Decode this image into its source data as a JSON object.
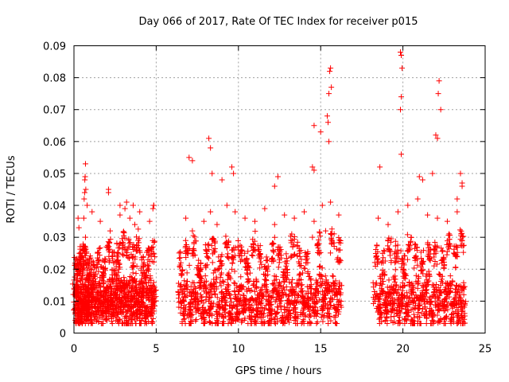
{
  "chart_data": {
    "type": "scatter",
    "title": "Day 066 of 2017, Rate Of TEC Index for receiver p015",
    "xlabel": "GPS time / hours",
    "ylabel": "ROTI / TECUs",
    "xlim": [
      0,
      25
    ],
    "ylim": [
      0,
      0.09
    ],
    "x_ticks": [
      0,
      5,
      10,
      15,
      20,
      25
    ],
    "y_ticks": [
      0,
      0.01,
      0.02,
      0.03,
      0.04,
      0.05,
      0.06,
      0.07,
      0.08,
      0.09
    ],
    "x_tick_labels": [
      "0",
      "5",
      "10",
      "15",
      "20",
      "25"
    ],
    "y_tick_labels": [
      "0",
      "0.01",
      "0.02",
      "0.03",
      "0.04",
      "0.05",
      "0.06",
      "0.07",
      "0.08",
      "0.09"
    ],
    "grid": true,
    "marker": "+",
    "color": "#ff0000",
    "series": [
      {
        "x": [
          0.05,
          0.1,
          0.15,
          0.2,
          0.25,
          0.3,
          0.35,
          0.4,
          0.45,
          0.5,
          0.55,
          0.6,
          0.65,
          0.7,
          0.75,
          0.8,
          0.85,
          0.9,
          0.95,
          1.0,
          1.1,
          1.2,
          1.3,
          1.4,
          1.5,
          1.6,
          1.7,
          1.8,
          1.9,
          2.0,
          2.1,
          2.2,
          2.3,
          2.4,
          2.5,
          2.6,
          2.7,
          2.8,
          2.9,
          3.0,
          3.1,
          3.2,
          3.3,
          3.4,
          3.5,
          3.6,
          3.7,
          3.8,
          3.9,
          4.0,
          4.1,
          4.2,
          4.3,
          4.4,
          4.5,
          4.6,
          4.7,
          4.8,
          4.9,
          0.1,
          0.3,
          0.5,
          0.7,
          0.9,
          1.2,
          1.5,
          1.8,
          2.1,
          2.4,
          2.7,
          3.0,
          3.3,
          3.6,
          3.9,
          4.2,
          4.5,
          4.8,
          0.2,
          0.4,
          0.6,
          0.8,
          1.0,
          1.4,
          1.7,
          2.0,
          2.3,
          2.6,
          2.9,
          3.2,
          3.5,
          3.8,
          4.1,
          4.4,
          4.7,
          0.3,
          0.6,
          0.8,
          1.1,
          1.6,
          2.2,
          2.8,
          3.1,
          3.4,
          3.7,
          4.0,
          4.6,
          4.85,
          0.25,
          0.65,
          0.72,
          2.1,
          2.8,
          3.2,
          3.6,
          4.8,
          0.7,
          0.66,
          0.68,
          0.62,
          2.1,
          4.85
        ],
        "y": [
          0.012,
          0.009,
          0.015,
          0.008,
          0.011,
          0.02,
          0.01,
          0.007,
          0.013,
          0.018,
          0.009,
          0.012,
          0.025,
          0.011,
          0.008,
          0.014,
          0.01,
          0.016,
          0.009,
          0.012,
          0.01,
          0.015,
          0.008,
          0.011,
          0.013,
          0.009,
          0.017,
          0.01,
          0.012,
          0.008,
          0.014,
          0.011,
          0.009,
          0.016,
          0.01,
          0.012,
          0.019,
          0.008,
          0.013,
          0.011,
          0.015,
          0.009,
          0.012,
          0.01,
          0.014,
          0.008,
          0.017,
          0.011,
          0.009,
          0.013,
          0.01,
          0.012,
          0.016,
          0.008,
          0.011,
          0.014,
          0.009,
          0.012,
          0.01,
          0.02,
          0.022,
          0.024,
          0.03,
          0.021,
          0.019,
          0.023,
          0.02,
          0.026,
          0.022,
          0.025,
          0.028,
          0.027,
          0.024,
          0.029,
          0.021,
          0.023,
          0.025,
          0.006,
          0.005,
          0.007,
          0.006,
          0.005,
          0.006,
          0.005,
          0.007,
          0.006,
          0.005,
          0.006,
          0.004,
          0.005,
          0.006,
          0.004,
          0.005,
          0.006,
          0.033,
          0.036,
          0.04,
          0.038,
          0.035,
          0.032,
          0.037,
          0.039,
          0.036,
          0.034,
          0.038,
          0.035,
          0.04,
          0.036,
          0.044,
          0.045,
          0.044,
          0.04,
          0.041,
          0.04,
          0.039,
          0.053,
          0.048,
          0.049,
          0.042,
          0.045,
          0.04
        ]
      },
      {
        "x": [
          6.4,
          6.6,
          6.8,
          7.0,
          7.2,
          7.4,
          7.6,
          7.8,
          8.0,
          8.2,
          8.4,
          8.6,
          8.8,
          9.0,
          9.2,
          9.4,
          9.6,
          9.8,
          10.0,
          10.2,
          10.4,
          10.6,
          10.8,
          11.0,
          11.2,
          11.4,
          11.6,
          11.8,
          12.0,
          12.2,
          12.4,
          12.6,
          12.8,
          13.0,
          13.2,
          13.4,
          13.6,
          13.8,
          14.0,
          14.2,
          14.4,
          14.6,
          14.8,
          15.0,
          15.2,
          15.4,
          15.6,
          15.8,
          16.0,
          16.2,
          6.5,
          6.9,
          7.3,
          7.7,
          8.1,
          8.5,
          8.9,
          9.3,
          9.7,
          10.1,
          10.5,
          10.9,
          11.3,
          11.7,
          12.1,
          12.5,
          12.9,
          13.3,
          13.7,
          14.1,
          14.5,
          14.9,
          15.3,
          15.7,
          16.1,
          6.7,
          7.1,
          7.5,
          7.9,
          8.3,
          8.7,
          9.1,
          9.5,
          9.9,
          10.3,
          10.7,
          11.1,
          11.5,
          11.9,
          12.3,
          12.7,
          13.1,
          13.5,
          13.9,
          14.3,
          14.7,
          15.1,
          15.5,
          15.9,
          6.8,
          7.2,
          7.9,
          8.3,
          8.7,
          9.3,
          9.8,
          10.4,
          11.0,
          11.6,
          12.2,
          12.8,
          13.4,
          14.0,
          14.6,
          15.1,
          15.6,
          16.1,
          7.0,
          7.2,
          8.2,
          8.3,
          8.4,
          9.0,
          9.6,
          9.7,
          12.2,
          12.4,
          14.5,
          14.6,
          15.4,
          15.5,
          15.55,
          15.6,
          15.65,
          15.5,
          15.45,
          14.6,
          15.0
        ],
        "y": [
          0.012,
          0.01,
          0.015,
          0.009,
          0.013,
          0.011,
          0.018,
          0.008,
          0.014,
          0.01,
          0.012,
          0.016,
          0.009,
          0.013,
          0.011,
          0.015,
          0.008,
          0.012,
          0.01,
          0.014,
          0.009,
          0.017,
          0.011,
          0.013,
          0.008,
          0.012,
          0.015,
          0.01,
          0.009,
          0.014,
          0.012,
          0.011,
          0.016,
          0.008,
          0.013,
          0.01,
          0.012,
          0.015,
          0.009,
          0.011,
          0.014,
          0.01,
          0.013,
          0.017,
          0.012,
          0.015,
          0.011,
          0.014,
          0.009,
          0.012,
          0.022,
          0.025,
          0.028,
          0.02,
          0.024,
          0.026,
          0.021,
          0.027,
          0.023,
          0.025,
          0.022,
          0.028,
          0.024,
          0.02,
          0.026,
          0.023,
          0.021,
          0.027,
          0.025,
          0.022,
          0.03,
          0.028,
          0.032,
          0.029,
          0.026,
          0.006,
          0.005,
          0.007,
          0.005,
          0.006,
          0.004,
          0.005,
          0.006,
          0.005,
          0.007,
          0.005,
          0.006,
          0.005,
          0.004,
          0.006,
          0.005,
          0.007,
          0.005,
          0.006,
          0.005,
          0.006,
          0.007,
          0.006,
          0.005,
          0.036,
          0.032,
          0.035,
          0.038,
          0.034,
          0.04,
          0.038,
          0.036,
          0.035,
          0.039,
          0.034,
          0.037,
          0.036,
          0.038,
          0.035,
          0.04,
          0.041,
          0.037,
          0.055,
          0.054,
          0.061,
          0.058,
          0.05,
          0.048,
          0.052,
          0.05,
          0.046,
          0.049,
          0.052,
          0.051,
          0.068,
          0.06,
          0.082,
          0.083,
          0.077,
          0.075,
          0.066,
          0.065,
          0.063
        ]
      },
      {
        "x": [
          18.3,
          18.5,
          18.7,
          18.9,
          19.1,
          19.3,
          19.5,
          19.7,
          19.9,
          20.1,
          20.3,
          20.5,
          20.7,
          20.9,
          21.1,
          21.3,
          21.5,
          21.7,
          21.9,
          22.1,
          22.3,
          22.5,
          22.7,
          22.9,
          23.1,
          23.3,
          23.5,
          23.7,
          18.4,
          18.8,
          19.2,
          19.6,
          20.0,
          20.4,
          20.8,
          21.2,
          21.6,
          22.0,
          22.4,
          22.8,
          23.2,
          23.6,
          18.6,
          19.0,
          19.4,
          19.8,
          20.2,
          20.6,
          21.0,
          21.4,
          21.8,
          22.2,
          22.6,
          23.0,
          23.4,
          23.65,
          18.5,
          19.1,
          19.7,
          20.3,
          20.9,
          21.5,
          22.1,
          22.7,
          23.3,
          23.6,
          18.6,
          19.85,
          19.9,
          19.95,
          19.9,
          19.85,
          19.9,
          21.0,
          21.2,
          21.8,
          22.0,
          22.1,
          22.2,
          22.15,
          22.3,
          23.3,
          23.5,
          23.6
        ],
        "y": [
          0.012,
          0.01,
          0.014,
          0.009,
          0.013,
          0.011,
          0.016,
          0.01,
          0.012,
          0.015,
          0.009,
          0.013,
          0.011,
          0.014,
          0.01,
          0.012,
          0.016,
          0.009,
          0.013,
          0.011,
          0.015,
          0.01,
          0.012,
          0.014,
          0.009,
          0.013,
          0.011,
          0.012,
          0.024,
          0.022,
          0.026,
          0.025,
          0.023,
          0.027,
          0.024,
          0.022,
          0.026,
          0.025,
          0.023,
          0.028,
          0.024,
          0.029,
          0.006,
          0.005,
          0.007,
          0.005,
          0.006,
          0.004,
          0.005,
          0.006,
          0.005,
          0.007,
          0.005,
          0.006,
          0.004,
          0.005,
          0.036,
          0.034,
          0.038,
          0.04,
          0.042,
          0.037,
          0.036,
          0.035,
          0.038,
          0.046,
          0.052,
          0.088,
          0.087,
          0.083,
          0.074,
          0.07,
          0.056,
          0.049,
          0.048,
          0.05,
          0.062,
          0.061,
          0.079,
          0.075,
          0.07,
          0.042,
          0.05,
          0.047
        ]
      }
    ]
  }
}
